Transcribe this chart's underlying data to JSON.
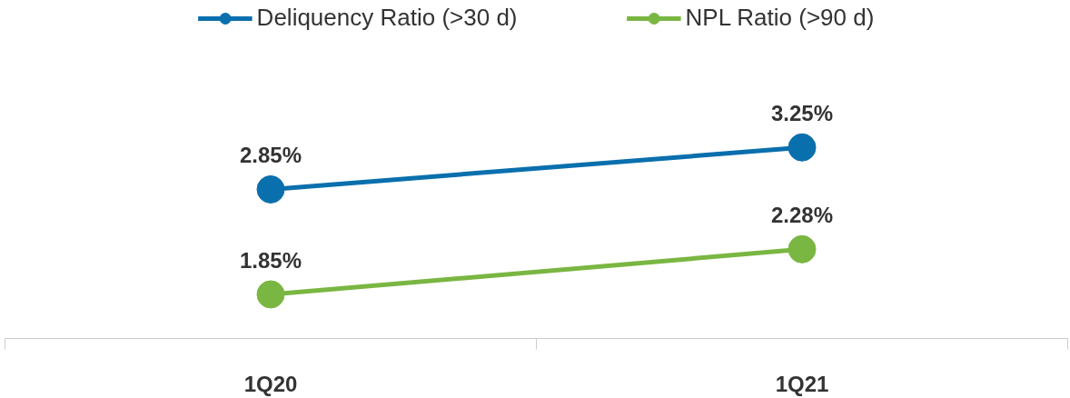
{
  "chart_data": {
    "type": "line",
    "categories": [
      "1Q20",
      "1Q21"
    ],
    "series": [
      {
        "name": "Deliquency Ratio (>30 d)",
        "color": "#0a6fad",
        "values": [
          2.85,
          3.25
        ],
        "value_labels": [
          "2.85%",
          "3.25%"
        ]
      },
      {
        "name": "NPL Ratio (>90 d)",
        "color": "#7ab642",
        "values": [
          1.85,
          2.28
        ],
        "value_labels": [
          "1.85%",
          "2.28%"
        ]
      }
    ],
    "marker": "circle",
    "line_style": "solid",
    "legend": "top",
    "grid": false
  }
}
